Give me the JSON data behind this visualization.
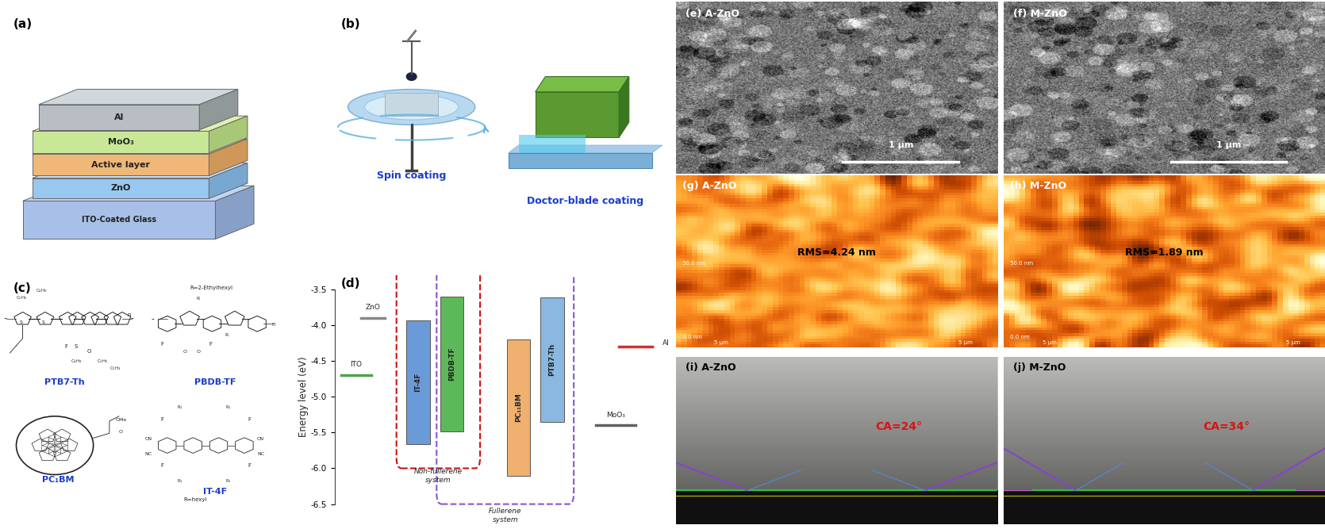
{
  "panel_labels": [
    "(a)",
    "(b)",
    "(c)",
    "(d)",
    "(e) A-ZnO",
    "(f) M-ZnO",
    "(g) A-ZnO",
    "(h) M-ZnO",
    "(i) A-ZnO",
    "(j) M-ZnO"
  ],
  "bg_color": "#ffffff",
  "layer_labels": [
    "Al",
    "MoO₃",
    "Active layer",
    "ZnO",
    "ITO-Coated Glass"
  ],
  "layer_colors": [
    "#b8bec4",
    "#c8e898",
    "#f0b878",
    "#98c8f0",
    "#a8c0e8"
  ],
  "layer_side_colors": [
    "#909898",
    "#a8c878",
    "#d09858",
    "#78a8d0",
    "#88a0c8"
  ],
  "layer_top_colors": [
    "#d0d8de",
    "#e0f0b0",
    "#f8d0a0",
    "#c0dff8",
    "#c0d4f4"
  ],
  "coating_label_color": "#1a3ccc",
  "spin_label": "Spin coating",
  "blade_label": "Doctor-blade coating",
  "molecule_labels": [
    "PTB7-Th",
    "PBDB-TF",
    "PC₁BM",
    "IT-4F"
  ],
  "molecule_label_color": "#1a3ccc",
  "energy_ylabel": "Energy level (eV)",
  "energy_yticks": [
    -3.5,
    -4.0,
    -4.5,
    -5.0,
    -5.5,
    -6.0,
    -6.5
  ],
  "sem_bg_a": "#4a5858",
  "sem_bg_f": "#505860",
  "afm_a_rms": "RMS=4.24 nm",
  "afm_m_rms": "RMS=1.89 nm",
  "ca_a": "CA=24°",
  "ca_m": "CA=34°",
  "ca_color": "#dd1111",
  "scale_bar": "1 μm",
  "it4f_color": "#6a9ad8",
  "pbdb_color": "#5cb858",
  "pc71_color": "#f0b070",
  "ptb7_color": "#8ab8e0",
  "zno_color": "#888888",
  "moo3_color": "#606060",
  "ito_color": "#50a050",
  "nonfull_box": "#cc1111",
  "full_box": "#8855cc"
}
